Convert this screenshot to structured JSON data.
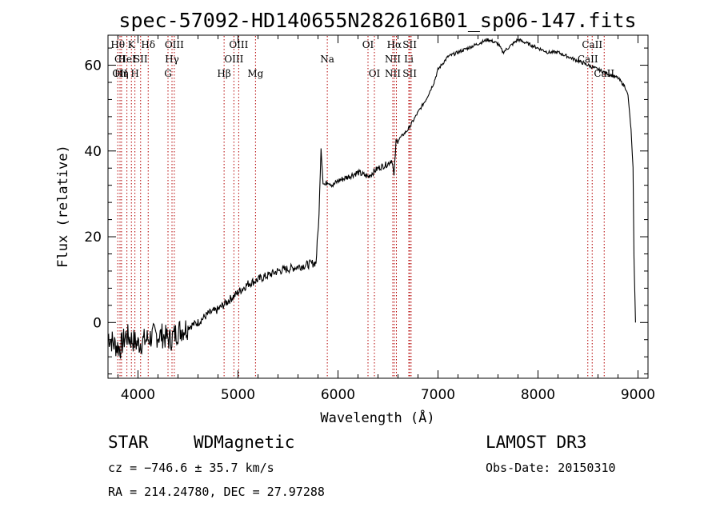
{
  "chart_data": {
    "type": "line",
    "title": "spec-57092-HD140655N282616B01_sp06-147.fits",
    "xlabel": "Wavelength (Å)",
    "ylabel": "Flux (relative)",
    "xlim": [
      3700,
      9100
    ],
    "ylim": [
      -13,
      67
    ],
    "x_ticks": [
      4000,
      5000,
      6000,
      7000,
      8000,
      9000
    ],
    "y_ticks": [
      0,
      20,
      40,
      60
    ],
    "series": [
      {
        "name": "flux",
        "x": [
          3700,
          3760,
          3820,
          3880,
          3940,
          4000,
          4080,
          4160,
          4240,
          4320,
          4400,
          4500,
          4600,
          4700,
          4800,
          4900,
          5000,
          5100,
          5200,
          5300,
          5400,
          5500,
          5600,
          5700,
          5780,
          5810,
          5830,
          5850,
          5870,
          5900,
          5950,
          6000,
          6100,
          6200,
          6300,
          6400,
          6500,
          6540,
          6560,
          6580,
          6620,
          6700,
          6800,
          6880,
          6920,
          6960,
          7000,
          7100,
          7200,
          7300,
          7400,
          7500,
          7600,
          7650,
          7700,
          7800,
          7900,
          8000,
          8100,
          8200,
          8300,
          8400,
          8500,
          8600,
          8700,
          8800,
          8870,
          8900,
          8930,
          8950,
          8960,
          8975
        ],
        "y": [
          -3,
          -5,
          -6,
          -3,
          -4,
          -5,
          -4,
          -3,
          -3,
          -4,
          -2,
          -1,
          0,
          2,
          3,
          5,
          7,
          9,
          10,
          11,
          12,
          12.5,
          13,
          13.5,
          14,
          25,
          41,
          33,
          32,
          33,
          32,
          33,
          34,
          35,
          34,
          36,
          37,
          38,
          34,
          42,
          43,
          45,
          49,
          52,
          54,
          56,
          59,
          62,
          63,
          64,
          65,
          66,
          65,
          63,
          64,
          66,
          65,
          64,
          63,
          63,
          62,
          61,
          60,
          59,
          58,
          57,
          55,
          53,
          45,
          36,
          15,
          0
        ]
      }
    ],
    "lines": [
      {
        "x": 3798,
        "labels": [
          "Hθ"
        ]
      },
      {
        "x": 3820,
        "labels": [
          "",
          "CI",
          "OII"
        ]
      },
      {
        "x": 3835,
        "labels": [
          "",
          "",
          "Hη"
        ]
      },
      {
        "x": 3889,
        "labels": [
          "",
          "HeI"
        ]
      },
      {
        "x": 3934,
        "labels": [
          "K"
        ]
      },
      {
        "x": 3969,
        "labels": [
          "",
          "",
          "H"
        ]
      },
      {
        "x": 4026,
        "labels": [
          "",
          "SII"
        ]
      },
      {
        "x": 4102,
        "labels": [
          "Hδ"
        ]
      },
      {
        "x": 4300,
        "labels": [
          "",
          "",
          "G"
        ]
      },
      {
        "x": 4340,
        "labels": [
          "",
          "Hγ"
        ]
      },
      {
        "x": 4363,
        "labels": [
          "OIII"
        ]
      },
      {
        "x": 4861,
        "labels": [
          "",
          "",
          "Hβ"
        ]
      },
      {
        "x": 4959,
        "labels": [
          "",
          "OIII"
        ]
      },
      {
        "x": 5007,
        "labels": [
          "OIII"
        ]
      },
      {
        "x": 5175,
        "labels": [
          "",
          "",
          "Mg"
        ]
      },
      {
        "x": 5893,
        "labels": [
          "",
          "Na"
        ]
      },
      {
        "x": 6300,
        "labels": [
          "OI"
        ]
      },
      {
        "x": 6364,
        "labels": [
          "",
          "",
          "OI"
        ]
      },
      {
        "x": 6548,
        "labels": [
          "",
          "NII",
          "NII"
        ]
      },
      {
        "x": 6563,
        "labels": [
          "Hα"
        ]
      },
      {
        "x": 6584,
        "labels": [
          "",
          "",
          ""
        ]
      },
      {
        "x": 6708,
        "labels": [
          "",
          "Li"
        ]
      },
      {
        "x": 6717,
        "labels": [
          "SII",
          "",
          "SII"
        ]
      },
      {
        "x": 6731,
        "labels": [
          "",
          "",
          ""
        ]
      },
      {
        "x": 8498,
        "labels": [
          "",
          "CaII"
        ]
      },
      {
        "x": 8542,
        "labels": [
          "CaII"
        ]
      },
      {
        "x": 8662,
        "labels": [
          "",
          "",
          "CaII"
        ]
      }
    ]
  },
  "info": {
    "class_label": "STAR",
    "subclass": "WDMagnetic",
    "survey": "LAMOST DR3",
    "cz": "cz = −746.6 ± 35.7 km/s",
    "obs_date": "Obs-Date: 20150310",
    "coords": "RA = 214.24780, DEC =  27.97288"
  }
}
